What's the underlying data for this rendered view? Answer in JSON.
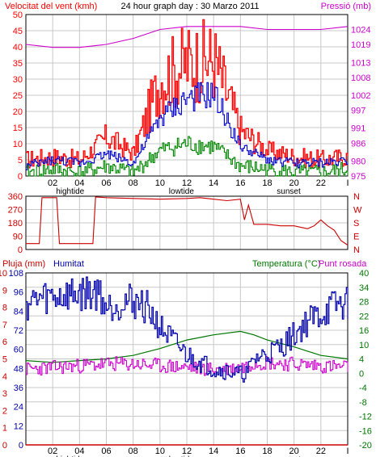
{
  "title": "24 hour graph day : 30 Marzo 2011",
  "colors": {
    "wind": "#ff0000",
    "gust": "#ff0000",
    "avg": "#0000cc",
    "min": "#008800",
    "pressure": "#cc00cc",
    "dir": "#cc0000",
    "humidity": "#0000aa",
    "temp": "#007700",
    "dew": "#cc00cc",
    "rain": "#cc0000",
    "grid": "#c8c8c8"
  },
  "chart_data": [
    {
      "type": "line",
      "left_label": "Velocitat del vent (kmh)",
      "right_label": "Pressió (mb)",
      "left_ticks": [
        "0",
        "5",
        "10",
        "15",
        "20",
        "25",
        "30",
        "35",
        "40",
        "45",
        "50"
      ],
      "right_ticks": [
        "975",
        "980",
        "986",
        "991",
        "997",
        "1002",
        "1008",
        "1013",
        "1019",
        "1024"
      ],
      "x_ticks": [
        "02",
        "04",
        "06",
        "08",
        "10",
        "12",
        "14",
        "16",
        "18",
        "20",
        "22",
        "I"
      ],
      "markers": [
        "hightide",
        "lowtide",
        "sunset"
      ],
      "ylim": [
        0,
        50
      ],
      "right_ylim": [
        975,
        1029
      ],
      "xlim": [
        0,
        24
      ],
      "series": [
        {
          "x": [
            0,
            2,
            4,
            6,
            8,
            10,
            12,
            14,
            16,
            18,
            20,
            22,
            24
          ],
          "values": [
            5,
            6,
            5,
            12,
            7,
            30,
            35,
            36,
            14,
            8,
            6,
            5,
            6
          ]
        },
        {
          "x": [
            0,
            2,
            4,
            6,
            8,
            10,
            12,
            14,
            16,
            18,
            20,
            22,
            24
          ],
          "values": [
            3,
            5,
            4,
            7,
            4,
            18,
            24,
            25,
            9,
            5,
            4,
            4,
            5
          ]
        },
        {
          "x": [
            0,
            2,
            4,
            6,
            8,
            10,
            12,
            14,
            16,
            18,
            20,
            22,
            24
          ],
          "values": [
            1,
            2,
            1,
            3,
            1,
            8,
            10,
            9,
            3,
            2,
            1,
            1,
            2
          ]
        },
        {
          "x": [
            0,
            2,
            4,
            6,
            8,
            10,
            12,
            14,
            16,
            18,
            20,
            22,
            24
          ],
          "values": [
            1019,
            1018,
            1018,
            1019,
            1021,
            1024,
            1025,
            1025,
            1025,
            1024,
            1024,
            1024,
            1025
          ]
        }
      ]
    },
    {
      "type": "line",
      "left_ticks": [
        "0",
        "90",
        "180",
        "270",
        "360"
      ],
      "right_ticks": [
        "N",
        "E",
        "S",
        "W",
        "N"
      ],
      "ylim": [
        0,
        360
      ],
      "xlim": [
        0,
        24
      ],
      "series": [
        {
          "x": [
            0,
            1,
            1.2,
            2.3,
            2.5,
            5,
            5.2,
            6,
            8,
            10,
            12,
            13,
            14,
            15,
            16,
            16.3,
            16.6,
            17,
            18,
            19,
            20,
            21,
            21.5,
            22,
            22.5,
            23,
            23.5,
            24
          ],
          "values": [
            40,
            40,
            350,
            350,
            40,
            40,
            355,
            350,
            345,
            340,
            345,
            350,
            340,
            330,
            340,
            200,
            300,
            170,
            170,
            160,
            160,
            140,
            160,
            200,
            160,
            130,
            60,
            30
          ]
        }
      ]
    },
    {
      "type": "line",
      "left_label": "Pluja (mm)",
      "left_label2": "Humitat",
      "right_label": "Temperatura (°C)",
      "right_label2": "Punt rosada",
      "rain_ticks": [
        "0",
        "1",
        "2",
        "3",
        "4",
        "5",
        "6",
        "7",
        "8",
        "9",
        "10"
      ],
      "hum_ticks": [
        "0",
        "12",
        "24",
        "36",
        "48",
        "60",
        "72",
        "84",
        "96",
        "108"
      ],
      "temp_ticks": [
        "-20",
        "-16",
        "-12",
        "-8",
        "-4",
        "0",
        "4",
        "10",
        "16",
        "22",
        "28",
        "34",
        "40"
      ],
      "x_ticks": [
        "02",
        "04",
        "06",
        "08",
        "10",
        "12",
        "14",
        "16",
        "18",
        "20",
        "22",
        "I"
      ],
      "markers": [
        "hightide",
        "lowtide",
        "sunset"
      ],
      "ylim": [
        0,
        100
      ],
      "xlim": [
        0,
        24
      ],
      "series": [
        {
          "x": [
            0,
            1,
            2,
            3,
            4,
            5,
            5.5,
            6,
            7,
            8,
            9,
            10,
            11,
            12,
            13,
            14,
            15,
            16,
            16.5,
            17,
            18,
            19,
            20,
            21,
            22,
            23,
            24
          ],
          "values": [
            82,
            85,
            86,
            87,
            88,
            89,
            88,
            80,
            83,
            84,
            80,
            68,
            60,
            52,
            48,
            44,
            43,
            41,
            42,
            50,
            53,
            57,
            64,
            72,
            76,
            81,
            82
          ]
        },
        {
          "x": [
            0,
            2,
            4,
            6,
            8,
            10,
            12,
            14,
            16,
            17,
            18,
            20,
            22,
            24
          ],
          "values": [
            49,
            48,
            49,
            50,
            52,
            56,
            61,
            64,
            66,
            64,
            61,
            57,
            52,
            50
          ]
        },
        {
          "x": [
            0,
            2,
            4,
            6,
            8,
            10,
            12,
            14,
            16,
            17,
            18,
            20,
            22,
            24
          ],
          "values": [
            44,
            45,
            46,
            47,
            47,
            46,
            45,
            44,
            45,
            48,
            48,
            47,
            46,
            45
          ]
        },
        {
          "x": [
            0,
            24
          ],
          "values": [
            0,
            0
          ]
        }
      ]
    }
  ]
}
